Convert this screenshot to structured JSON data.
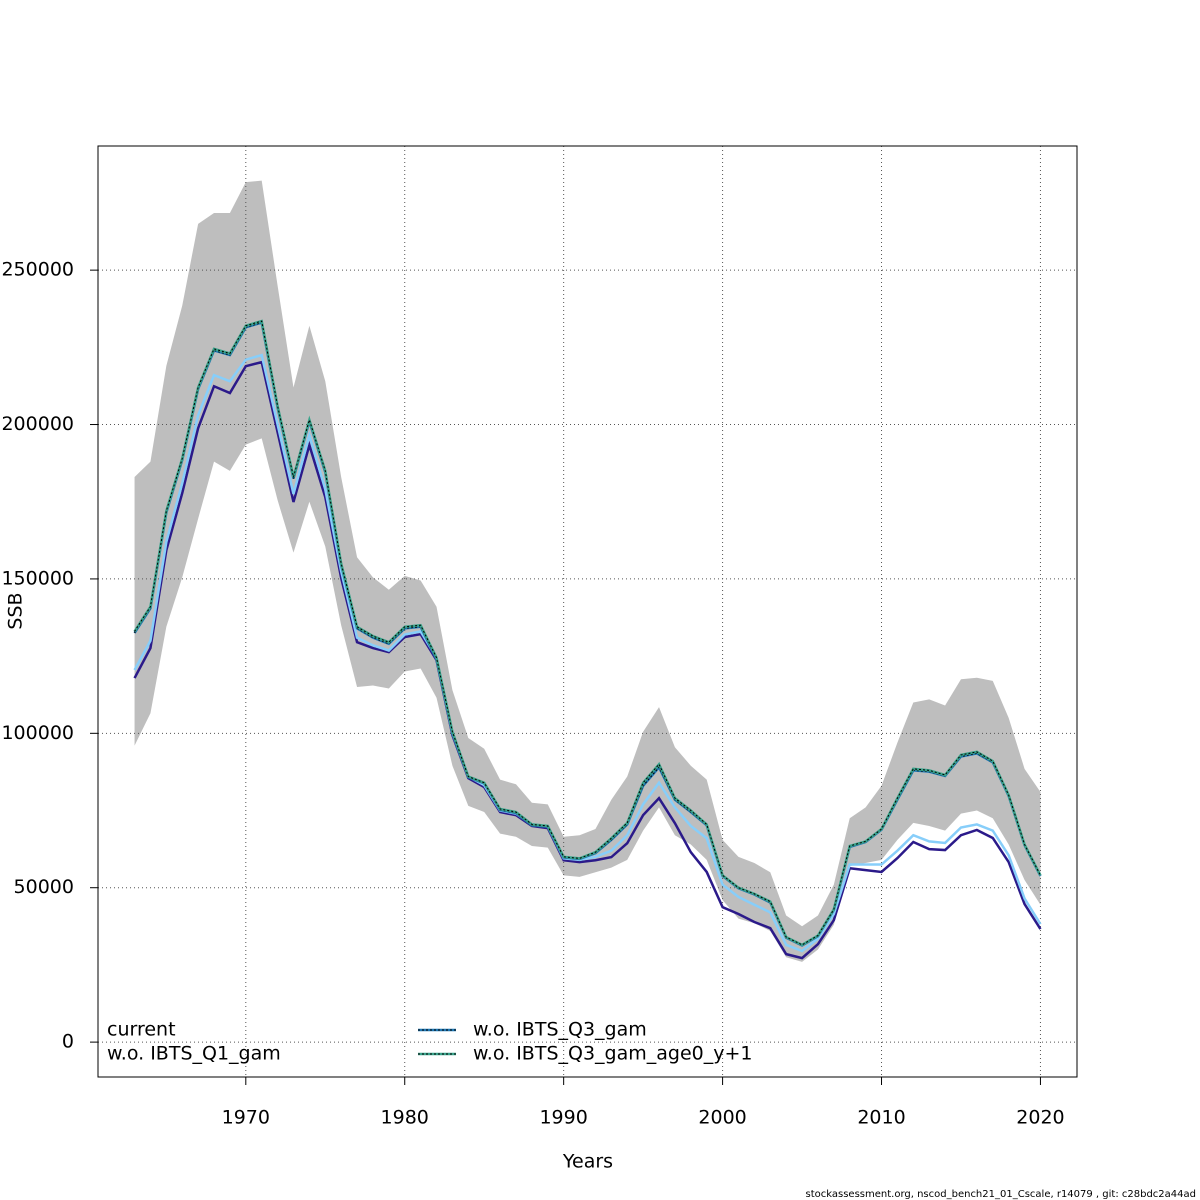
{
  "chart_data": {
    "type": "line",
    "xlabel": "Years",
    "ylabel": "SSB",
    "footer": "stockassessment.org, nscod_bench21_01_Cscale, r14079 , git: c28bdc2a44ad",
    "x": [
      1963,
      1964,
      1965,
      1966,
      1967,
      1968,
      1969,
      1970,
      1971,
      1972,
      1973,
      1974,
      1975,
      1976,
      1977,
      1978,
      1979,
      1980,
      1981,
      1982,
      1983,
      1984,
      1985,
      1986,
      1987,
      1988,
      1989,
      1990,
      1991,
      1992,
      1993,
      1994,
      1995,
      1996,
      1997,
      1998,
      1999,
      2000,
      2001,
      2002,
      2003,
      2004,
      2005,
      2006,
      2007,
      2008,
      2009,
      2010,
      2011,
      2012,
      2013,
      2014,
      2015,
      2016,
      2017,
      2018,
      2019,
      2020
    ],
    "band": {
      "color": "#bebebe",
      "lower": [
        96000,
        106500,
        134500,
        150500,
        169500,
        188000,
        185000,
        193500,
        195500,
        175500,
        158500,
        175000,
        160500,
        135000,
        115000,
        115500,
        114500,
        120000,
        121000,
        111500,
        89500,
        76500,
        74500,
        67500,
        66500,
        63500,
        63000,
        54000,
        53500,
        55000,
        56500,
        59000,
        68500,
        76000,
        67000,
        64000,
        59000,
        46000,
        40000,
        38500,
        36000,
        27500,
        26000,
        30000,
        38000,
        57000,
        58000,
        59000,
        65500,
        71000,
        70000,
        68500,
        74000,
        75000,
        72500,
        64000,
        52500,
        44500
      ],
      "upper": [
        183000,
        188000,
        219000,
        238500,
        265000,
        268500,
        268500,
        278500,
        279000,
        245000,
        212000,
        232000,
        214000,
        183000,
        157000,
        150500,
        146500,
        151000,
        149500,
        141000,
        114000,
        98500,
        95000,
        85000,
        83500,
        77500,
        77000,
        66500,
        67000,
        69000,
        78500,
        86000,
        100500,
        108500,
        95500,
        89500,
        85000,
        65500,
        60000,
        58000,
        55000,
        41000,
        37500,
        41000,
        51000,
        72500,
        76000,
        83000,
        97000,
        110000,
        111000,
        109000,
        117500,
        118000,
        117000,
        105000,
        88500,
        81000
      ]
    },
    "series": [
      {
        "name": "current",
        "color": "#2b1a8a",
        "values": [
          117900,
          127600,
          159300,
          177800,
          198800,
          212400,
          210200,
          218900,
          220200,
          197500,
          174900,
          193300,
          176500,
          150300,
          129500,
          127600,
          126300,
          131200,
          132100,
          123700,
          99400,
          85500,
          82600,
          74500,
          73500,
          70000,
          69300,
          58900,
          58300,
          58900,
          59900,
          64400,
          73500,
          79000,
          70900,
          61500,
          55100,
          43700,
          41500,
          38900,
          36900,
          28500,
          27200,
          31700,
          39500,
          56300,
          55700,
          55100,
          59600,
          64800,
          62500,
          62200,
          67000,
          68700,
          66100,
          58300,
          44700,
          36600
        ]
      },
      {
        "name": "w.o. IBTS_Q1_gam",
        "color": "#87cefa",
        "values": [
          120500,
          130000,
          162000,
          181000,
          203000,
          216000,
          214000,
          221000,
          222500,
          200000,
          177500,
          196500,
          179000,
          152500,
          131000,
          128500,
          126800,
          132000,
          133000,
          124500,
          100000,
          86000,
          83200,
          75000,
          74000,
          70500,
          69800,
          59500,
          59000,
          60000,
          62000,
          67000,
          77000,
          84000,
          76000,
          70000,
          66000,
          51000,
          47000,
          44500,
          42000,
          31500,
          29500,
          33500,
          41500,
          57500,
          57500,
          57500,
          62000,
          67000,
          65000,
          64500,
          69500,
          70500,
          68500,
          60500,
          46500,
          38200
        ]
      },
      {
        "name": "w.o. IBTS_Q3_gam",
        "color": "#1f78b4",
        "dash": "dotted",
        "values": [
          132500,
          140500,
          171500,
          188500,
          211500,
          224000,
          222500,
          231500,
          233000,
          205500,
          182500,
          201000,
          184500,
          154500,
          134000,
          131000,
          129000,
          134000,
          134500,
          124000,
          100000,
          85800,
          83800,
          75200,
          74200,
          70200,
          69800,
          59800,
          59300,
          61200,
          65500,
          70500,
          83000,
          89000,
          78500,
          74500,
          70200,
          53800,
          49800,
          47800,
          45200,
          33800,
          31300,
          34300,
          42800,
          63200,
          64800,
          68800,
          78500,
          88000,
          87600,
          86200,
          92500,
          93500,
          90600,
          79700,
          63800,
          53800
        ]
      },
      {
        "name": "w.o. IBTS_Q3_gam_age0_y+1",
        "color": "#3aa48b",
        "dash": "dotted",
        "values": [
          133000,
          141000,
          172000,
          189000,
          212000,
          224500,
          223000,
          232000,
          233500,
          206000,
          183000,
          201500,
          185000,
          155000,
          134500,
          131500,
          129500,
          134500,
          135000,
          124500,
          100500,
          86000,
          84000,
          75500,
          74500,
          70500,
          70000,
          60000,
          59500,
          61500,
          66000,
          71000,
          84000,
          90000,
          79000,
          75000,
          70500,
          54000,
          50000,
          48000,
          45500,
          34000,
          31500,
          34500,
          43000,
          63500,
          65000,
          69000,
          79000,
          88500,
          88000,
          86500,
          93000,
          94000,
          91000,
          80000,
          64000,
          54000
        ]
      }
    ],
    "xlim": [
      1960.7,
      2022.3
    ],
    "ylim": [
      -11300,
      290200
    ],
    "xticks": [
      1970,
      1980,
      1990,
      2000,
      2010,
      2020
    ],
    "yticks": [
      0,
      50000,
      100000,
      150000,
      200000,
      250000
    ],
    "grid": true,
    "legend": "bottomleft"
  }
}
